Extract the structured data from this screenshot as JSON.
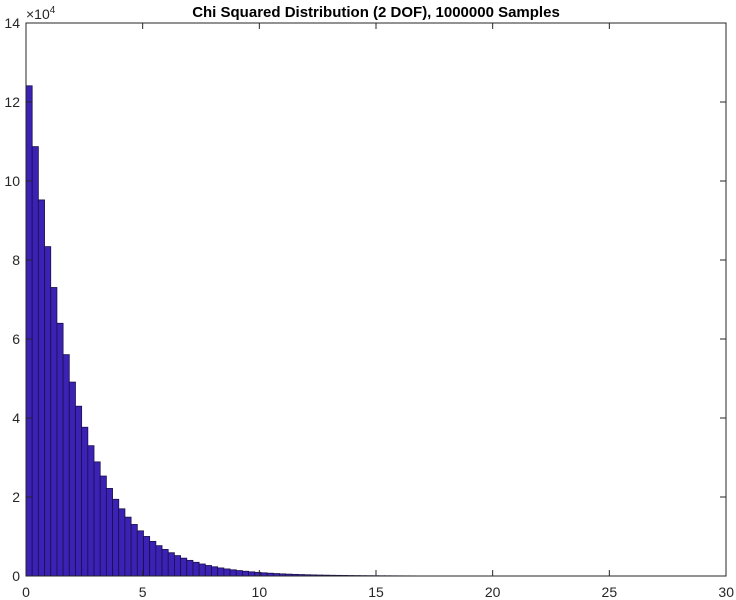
{
  "chart_data": {
    "type": "bar",
    "title": "Chi Squared Distribution (2 DOF), 1000000 Samples",
    "xlabel": "",
    "ylabel": "",
    "xlim": [
      0,
      30
    ],
    "ylim": [
      0,
      140000
    ],
    "x_ticks": [
      0,
      5,
      10,
      15,
      20,
      25,
      30
    ],
    "x_tick_labels": [
      "0",
      "5",
      "10",
      "15",
      "20",
      "25",
      "30"
    ],
    "y_ticks": [
      0,
      20000,
      40000,
      60000,
      80000,
      100000,
      120000,
      140000
    ],
    "y_tick_labels": [
      "0",
      "2",
      "4",
      "6",
      "8",
      "10",
      "12",
      "14"
    ],
    "y_exponent_label": "×10",
    "y_exponent_power": "4",
    "grid": false,
    "legend": null,
    "bin_start": 0,
    "bin_width": 0.265,
    "num_bins": 100,
    "bar_color": "#3b22b5",
    "edge_color": "#1b0f4a",
    "values": [
      124100,
      108700,
      95210,
      83390,
      73040,
      63980,
      56040,
      49090,
      42990,
      37660,
      32990,
      28890,
      25310,
      22170,
      19420,
      17010,
      14900,
      13050,
      11430,
      10010,
      8768,
      7680,
      6727,
      5892,
      5161,
      4520,
      3960,
      3468,
      3038,
      2661,
      2331,
      2041,
      1788,
      1566,
      1372,
      1202,
      1053,
      922,
      808,
      707,
      620,
      543,
      475,
      416,
      365,
      319,
      280,
      245,
      215,
      188,
      165,
      144,
      126,
      111,
      97,
      85,
      74,
      65,
      57,
      50,
      44,
      38,
      34,
      29,
      26,
      22,
      20,
      17,
      15,
      13,
      11,
      10,
      9,
      8,
      7,
      6,
      5,
      5,
      4,
      3,
      3,
      3,
      2,
      2,
      2,
      1,
      1,
      1,
      1,
      1,
      1,
      1,
      0,
      1,
      0,
      0,
      1,
      0,
      0,
      1
    ]
  }
}
